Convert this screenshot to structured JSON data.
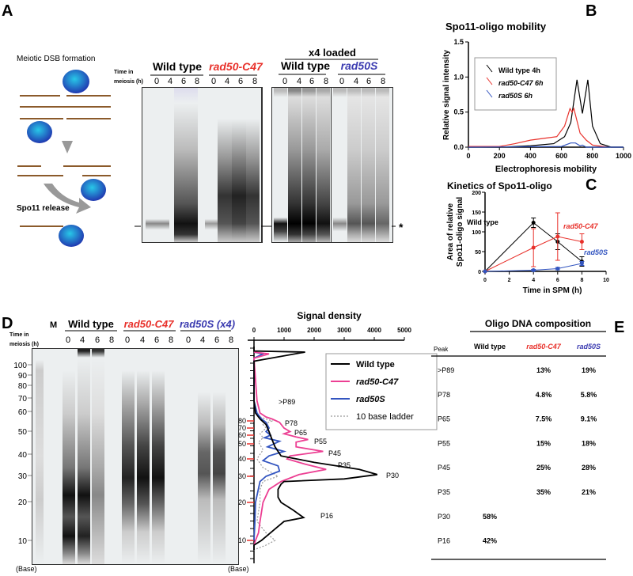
{
  "panels": {
    "a": "A",
    "b": "B",
    "c": "C",
    "d": "D",
    "e": "E"
  },
  "colors": {
    "wt": "#000000",
    "c47": "#e8302a",
    "s": "#3a3ab0",
    "pink": "#ec3f93",
    "blue": "#3355c0",
    "ladder": "#999999"
  },
  "panel_a": {
    "schematic_top": "Meiotic DSB formation",
    "schematic_bottom": "Spo11 release",
    "time_label_1": "Time in",
    "time_label_2": "meiosis (h)",
    "groups": [
      "Wild type",
      "rad50-C47",
      "Wild type",
      "rad50S"
    ],
    "x4_loaded": "x4 loaded",
    "lanes": [
      "0",
      "4",
      "6",
      "8"
    ],
    "asterisk": "*"
  },
  "panel_d": {
    "time_label_1": "Time in",
    "time_label_2": "meiosis (h)",
    "marker": "M",
    "groups": [
      "Wild type",
      "rad50-C47",
      "rad50S (x4)"
    ],
    "lanes": [
      "0",
      "4",
      "6",
      "8"
    ],
    "ladder_labels": [
      "100",
      "90",
      "80",
      "70",
      "60",
      "50",
      "40",
      "30",
      "20",
      "10"
    ],
    "base_label": "(Base)"
  },
  "chart_data": [
    {
      "id": "B",
      "type": "line",
      "title": "Spo11-oligo mobility",
      "xlabel": "Electrophoresis mobility",
      "ylabel": "Relative signal intensity",
      "xlim": [
        0,
        1000
      ],
      "ylim": [
        0,
        1.5
      ],
      "xticks": [
        "0",
        "200",
        "400",
        "600",
        "800",
        "1000"
      ],
      "yticks": [
        "0.0",
        "0.5",
        "1.0",
        "1.5"
      ],
      "legend": "top-left",
      "series": [
        {
          "name": "Wild type 4h",
          "color": "#000000",
          "points": [
            [
              0,
              0
            ],
            [
              200,
              0
            ],
            [
              400,
              0.02
            ],
            [
              550,
              0.05
            ],
            [
              620,
              0.15
            ],
            [
              660,
              0.35
            ],
            [
              700,
              0.96
            ],
            [
              735,
              0.48
            ],
            [
              770,
              0.96
            ],
            [
              800,
              0.3
            ],
            [
              850,
              0.05
            ],
            [
              920,
              0
            ],
            [
              1000,
              0
            ]
          ]
        },
        {
          "name": "rad50-C47 6h",
          "color": "#e8302a",
          "points": [
            [
              0,
              0.01
            ],
            [
              200,
              0.01
            ],
            [
              300,
              0.05
            ],
            [
              400,
              0.1
            ],
            [
              500,
              0.13
            ],
            [
              570,
              0.15
            ],
            [
              620,
              0.3
            ],
            [
              655,
              0.55
            ],
            [
              668,
              0.5
            ],
            [
              680,
              0.55
            ],
            [
              720,
              0.2
            ],
            [
              760,
              0.1
            ],
            [
              800,
              0.03
            ],
            [
              900,
              0
            ]
          ]
        },
        {
          "name": "rad50S 6h",
          "color": "#3355c0",
          "points": [
            [
              0,
              0
            ],
            [
              600,
              0.01
            ],
            [
              660,
              0.06
            ],
            [
              690,
              0.06
            ],
            [
              720,
              0.02
            ],
            [
              735,
              0.03
            ],
            [
              760,
              0
            ],
            [
              1000,
              0
            ]
          ]
        }
      ]
    },
    {
      "id": "C",
      "type": "line",
      "title": "Kinetics of Spo11-oligo",
      "xlabel": "Time in SPM (h)",
      "ylabel": [
        "Area of relative",
        "Spo11-oligo signal"
      ],
      "xlim": [
        0,
        10
      ],
      "ylim": [
        0,
        200
      ],
      "xticks": [
        "0",
        "2",
        "4",
        "6",
        "8",
        "10"
      ],
      "yticks": [
        "0",
        "50",
        "100",
        "150",
        "200"
      ],
      "series": [
        {
          "name": "Wild type",
          "color": "#000000",
          "x": [
            0,
            4,
            6,
            8
          ],
          "y": [
            0,
            123,
            75,
            25
          ],
          "err": [
            0,
            12,
            20,
            12
          ]
        },
        {
          "name": "rad50-C47",
          "color": "#e8302a",
          "x": [
            0,
            4,
            6,
            8
          ],
          "y": [
            0,
            60,
            88,
            75
          ],
          "err": [
            0,
            48,
            60,
            20
          ]
        },
        {
          "name": "rad50S",
          "color": "#3355c0",
          "x": [
            0,
            4,
            6,
            8
          ],
          "y": [
            0,
            3,
            7,
            20
          ],
          "err": [
            0,
            2,
            3,
            5
          ]
        }
      ]
    },
    {
      "id": "D",
      "type": "line",
      "title": "Signal density",
      "ylabel": "(Base)",
      "xlim": [
        0,
        5000
      ],
      "xticks": [
        "0",
        "1000",
        "2000",
        "3000",
        "4000",
        "5000"
      ],
      "yticks": [
        "80",
        "70",
        "60",
        "50",
        "40",
        "30",
        "20",
        "10"
      ],
      "legend": "top-right",
      "series": [
        {
          "name": "Wild type",
          "color": "#000000",
          "points": [
            [
              300,
              0
            ],
            [
              220,
              0
            ],
            [
              200,
              1700
            ],
            [
              185,
              0
            ],
            [
              120,
              0
            ],
            [
              100,
              50
            ],
            [
              85,
              200
            ],
            [
              75,
              400
            ],
            [
              65,
              500
            ],
            [
              55,
              600
            ],
            [
              48,
              700
            ],
            [
              42,
              900
            ],
            [
              38,
              2000
            ],
            [
              34,
              3500
            ],
            [
              31,
              4100
            ],
            [
              29,
              3000
            ],
            [
              28,
              1000
            ],
            [
              27,
              900
            ],
            [
              25,
              800
            ],
            [
              22,
              800
            ],
            [
              20,
              900
            ],
            [
              18,
              1300
            ],
            [
              16,
              1650
            ],
            [
              15,
              1000
            ],
            [
              13,
              700
            ],
            [
              11,
              400
            ],
            [
              10,
              250
            ],
            [
              9,
              0
            ],
            [
              8,
              0
            ]
          ]
        },
        {
          "name": "rad50-C47",
          "color": "#ec3f93",
          "points": [
            [
              200,
              0
            ],
            [
              197,
              500
            ],
            [
              190,
              0
            ],
            [
              120,
              100
            ],
            [
              100,
              200
            ],
            [
              90,
              400
            ],
            [
              85,
              600
            ],
            [
              78,
              850
            ],
            [
              70,
              1000
            ],
            [
              65,
              1200
            ],
            [
              62,
              1000
            ],
            [
              58,
              1400
            ],
            [
              55,
              1800
            ],
            [
              52,
              1400
            ],
            [
              48,
              1400
            ],
            [
              45,
              2300
            ],
            [
              42,
              1200
            ],
            [
              40,
              1100
            ],
            [
              37,
              1700
            ],
            [
              34,
              2400
            ],
            [
              31,
              1500
            ],
            [
              28,
              900
            ],
            [
              25,
              500
            ],
            [
              20,
              300
            ],
            [
              15,
              200
            ],
            [
              12,
              150
            ],
            [
              10,
              50
            ],
            [
              9,
              0
            ]
          ]
        },
        {
          "name": "rad50S",
          "color": "#3355c0",
          "points": [
            [
              200,
              0
            ],
            [
              197,
              300
            ],
            [
              190,
              0
            ],
            [
              120,
              0
            ],
            [
              100,
              100
            ],
            [
              85,
              250
            ],
            [
              78,
              400
            ],
            [
              70,
              500
            ],
            [
              65,
              400
            ],
            [
              60,
              550
            ],
            [
              57,
              350
            ],
            [
              53,
              850
            ],
            [
              48,
              450
            ],
            [
              45,
              1000
            ],
            [
              42,
              500
            ],
            [
              39,
              300
            ],
            [
              36,
              800
            ],
            [
              33,
              850
            ],
            [
              30,
              400
            ],
            [
              28,
              200
            ],
            [
              20,
              50
            ],
            [
              15,
              30
            ],
            [
              10,
              0
            ]
          ]
        },
        {
          "name": "10 base ladder",
          "color": "#999999",
          "dashed": true,
          "points": [
            [
              90,
              200
            ],
            [
              80,
              600
            ],
            [
              75,
              300
            ],
            [
              70,
              400
            ],
            [
              62,
              200
            ],
            [
              57,
              300
            ],
            [
              52,
              150
            ],
            [
              46,
              300
            ],
            [
              40,
              100
            ],
            [
              35,
              300
            ],
            [
              30,
              800
            ],
            [
              28,
              300
            ],
            [
              25,
              200
            ],
            [
              20,
              200
            ],
            [
              15,
              100
            ],
            [
              12,
              400
            ],
            [
              10,
              700
            ],
            [
              9,
              400
            ],
            [
              8,
              0
            ]
          ]
        }
      ],
      "peak_labels": [
        ">P89",
        "P78",
        "P65",
        "P55",
        "P45",
        "P35",
        "P30",
        "P16"
      ]
    }
  ],
  "table_e": {
    "title": "Oligo DNA composition",
    "headers": [
      "Peak",
      "Wild type",
      "rad50-C47",
      "rad50S"
    ],
    "rows": [
      [
        ">P89",
        "",
        "13%",
        "19%"
      ],
      [
        "P78",
        "",
        "4.8%",
        "5.8%"
      ],
      [
        "P65",
        "",
        "7.5%",
        "9.1%"
      ],
      [
        "P55",
        "",
        "15%",
        "18%"
      ],
      [
        "P45",
        "",
        "25%",
        "28%"
      ],
      [
        "P35",
        "",
        "35%",
        "21%"
      ],
      [
        "P30",
        "58%",
        "",
        ""
      ],
      [
        "P16",
        "42%",
        "",
        ""
      ]
    ]
  }
}
